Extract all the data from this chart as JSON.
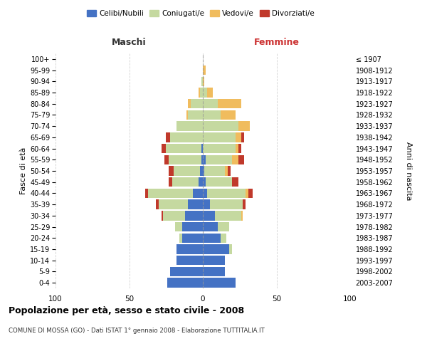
{
  "age_groups": [
    "0-4",
    "5-9",
    "10-14",
    "15-19",
    "20-24",
    "25-29",
    "30-34",
    "35-39",
    "40-44",
    "45-49",
    "50-54",
    "55-59",
    "60-64",
    "65-69",
    "70-74",
    "75-79",
    "80-84",
    "85-89",
    "90-94",
    "95-99",
    "100+"
  ],
  "birth_years": [
    "2003-2007",
    "1998-2002",
    "1993-1997",
    "1988-1992",
    "1983-1987",
    "1978-1982",
    "1973-1977",
    "1968-1972",
    "1963-1967",
    "1958-1962",
    "1953-1957",
    "1948-1952",
    "1943-1947",
    "1938-1942",
    "1933-1937",
    "1928-1932",
    "1923-1927",
    "1918-1922",
    "1913-1917",
    "1908-1912",
    "≤ 1907"
  ],
  "colors": {
    "celibe": "#4472C4",
    "coniugato": "#C5D9A0",
    "vedovo": "#F0BC5E",
    "divorziato": "#C0392B"
  },
  "maschi": {
    "celibe": [
      24,
      22,
      18,
      18,
      14,
      14,
      12,
      10,
      7,
      3,
      2,
      1,
      1,
      0,
      0,
      0,
      0,
      0,
      0,
      0,
      0
    ],
    "coniugato": [
      0,
      0,
      0,
      0,
      2,
      5,
      15,
      20,
      30,
      18,
      18,
      22,
      24,
      22,
      18,
      10,
      8,
      2,
      1,
      0,
      0
    ],
    "vedovo": [
      0,
      0,
      0,
      0,
      0,
      0,
      0,
      0,
      0,
      0,
      0,
      0,
      0,
      0,
      0,
      1,
      2,
      1,
      0,
      0,
      0
    ],
    "divorziato": [
      0,
      0,
      0,
      0,
      0,
      0,
      1,
      2,
      2,
      2,
      3,
      3,
      3,
      3,
      0,
      0,
      0,
      0,
      0,
      0,
      0
    ]
  },
  "femmine": {
    "nubile": [
      22,
      15,
      15,
      18,
      12,
      10,
      8,
      5,
      3,
      2,
      1,
      2,
      0,
      0,
      0,
      0,
      0,
      0,
      0,
      0,
      0
    ],
    "coniugata": [
      0,
      0,
      0,
      2,
      4,
      8,
      18,
      22,
      26,
      18,
      14,
      18,
      22,
      22,
      24,
      12,
      10,
      3,
      0,
      0,
      0
    ],
    "vedova": [
      0,
      0,
      0,
      0,
      0,
      0,
      1,
      0,
      2,
      0,
      2,
      4,
      2,
      4,
      8,
      10,
      16,
      4,
      1,
      2,
      0
    ],
    "divorziata": [
      0,
      0,
      0,
      0,
      0,
      0,
      0,
      2,
      3,
      4,
      2,
      4,
      2,
      2,
      0,
      0,
      0,
      0,
      0,
      0,
      0
    ]
  },
  "xlim": 100,
  "title": "Popolazione per età, sesso e stato civile - 2008",
  "subtitle": "COMUNE DI MOSSA (GO) - Dati ISTAT 1° gennaio 2008 - Elaborazione TUTTITALIA.IT",
  "xlabel_left": "Maschi",
  "xlabel_right": "Femmine",
  "ylabel_left": "Fasce di età",
  "ylabel_right": "Anni di nascita",
  "legend_labels": [
    "Celibi/Nubili",
    "Coniugati/e",
    "Vedovi/e",
    "Divorziati/e"
  ],
  "bg_color": "#FFFFFF",
  "grid_color": "#CCCCCC",
  "maschi_label_color": "#333333",
  "femmine_label_color": "#CC3333"
}
